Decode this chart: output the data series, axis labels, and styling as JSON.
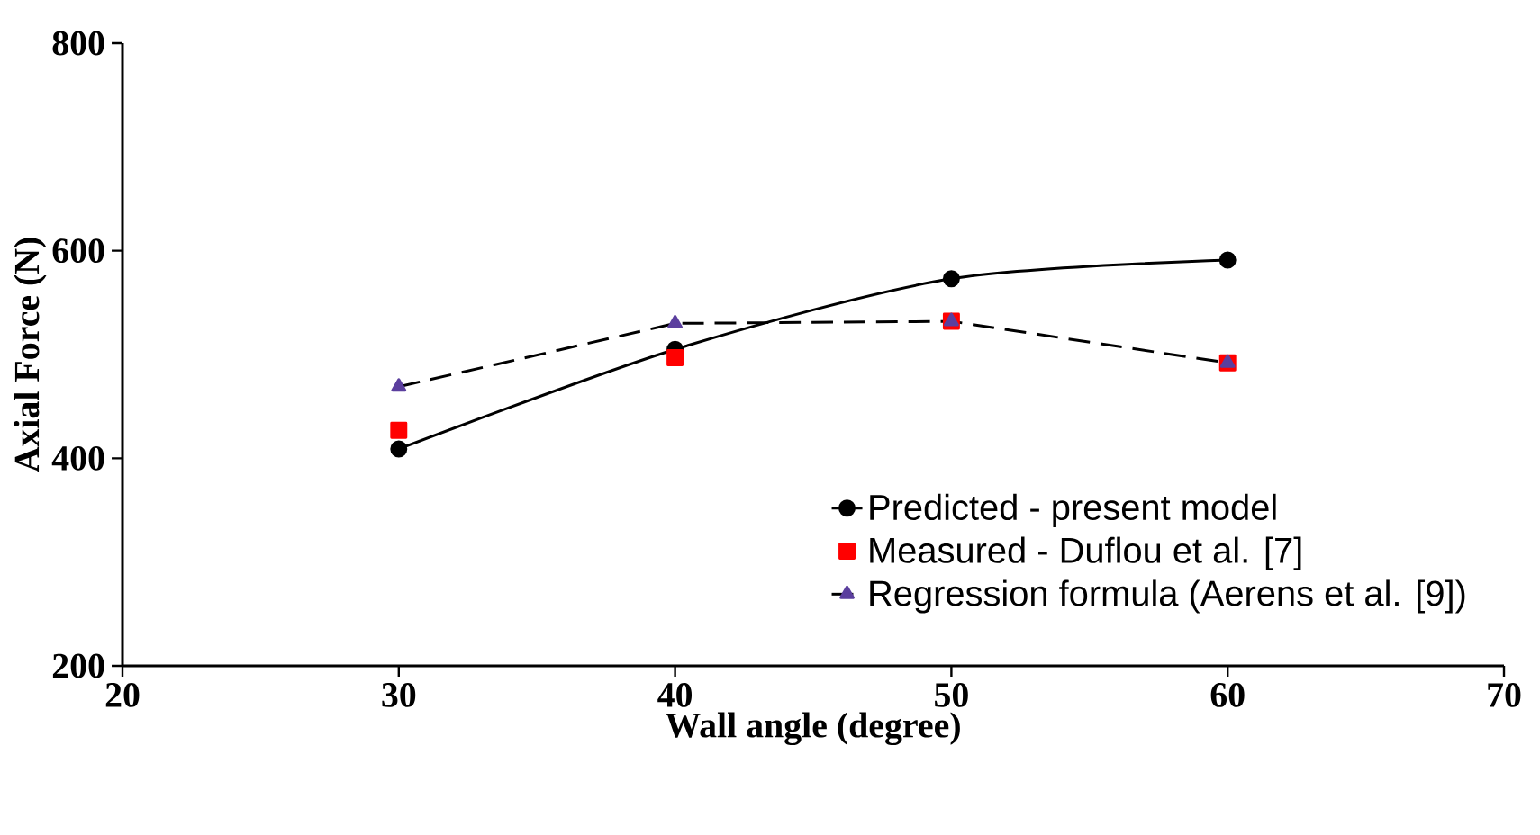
{
  "chart_data": {
    "type": "line",
    "xlabel": "Wall angle (degree)",
    "ylabel": "Axial Force (N)",
    "xlim": [
      20,
      70
    ],
    "xticks": [
      20,
      30,
      40,
      50,
      60,
      70
    ],
    "ylim": [
      200,
      800
    ],
    "yticks": [
      200,
      400,
      600,
      800
    ],
    "grid": false,
    "legend": "bottom right",
    "series": [
      {
        "name": "Predicted - present model",
        "color": "#000000",
        "marker": "circle",
        "line_style": "solid",
        "x": [
          30,
          40,
          50,
          60
        ],
        "values": [
          409,
          505,
          573,
          591
        ]
      },
      {
        "name": "Measured - Duflou et al. [7]",
        "type": "scatter",
        "color": "#ff0000",
        "marker": "square",
        "x": [
          30,
          40,
          50,
          60
        ],
        "values": [
          427,
          497,
          532,
          492
        ]
      },
      {
        "name": "Regression formula (Aerens et al. [9])",
        "color": "#5b3f9e",
        "marker": "triangle",
        "line_style": "dashed",
        "x": [
          30,
          40,
          50,
          60
        ],
        "values": [
          469,
          530,
          532,
          492
        ]
      }
    ]
  }
}
